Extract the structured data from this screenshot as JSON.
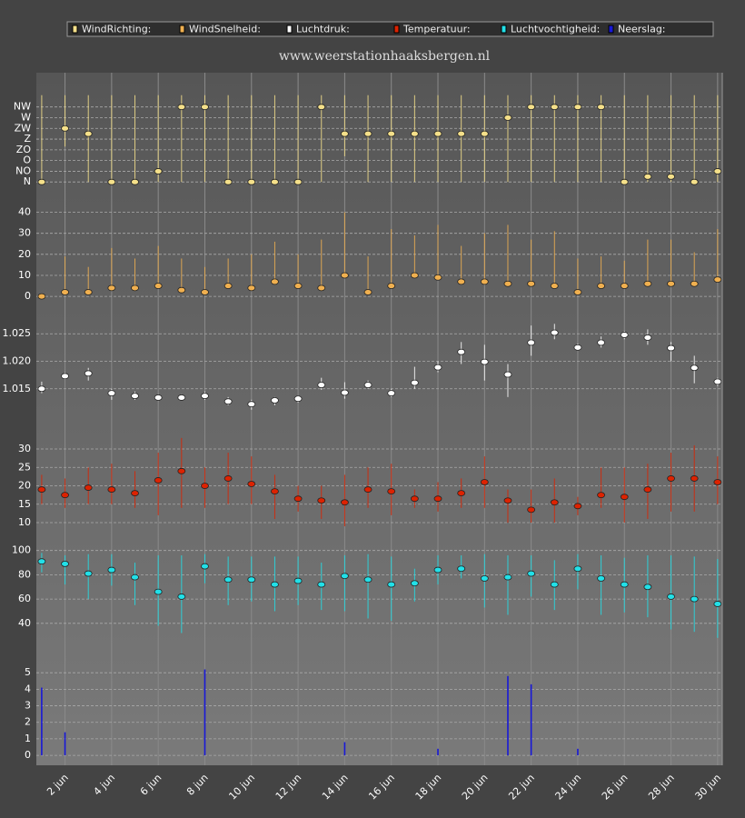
{
  "chart_data": [
    {
      "type": "scatter",
      "title": "www.weerstationhaaksbergen.nl",
      "name": "WindRichting:",
      "color": "#f5e08a",
      "x": [
        1,
        2,
        3,
        4,
        5,
        6,
        7,
        8,
        9,
        10,
        11,
        12,
        13,
        14,
        15,
        16,
        17,
        18,
        19,
        20,
        21,
        22,
        23,
        24,
        25,
        26,
        27,
        28,
        29,
        30
      ],
      "values": [
        0,
        5,
        4.5,
        0,
        0,
        1,
        7,
        7,
        0,
        0,
        0,
        0,
        7,
        4.5,
        4.5,
        4.5,
        4.5,
        4.5,
        4.5,
        4.5,
        6,
        7,
        7,
        7,
        7,
        0,
        0.5,
        0.5,
        0,
        1
      ],
      "low": [
        0,
        3.3,
        0,
        0,
        0,
        0,
        0,
        0,
        0,
        0,
        0,
        0,
        0,
        2.4,
        0,
        0,
        0,
        0,
        0,
        0,
        0,
        0,
        0,
        0,
        0,
        0,
        0,
        0,
        0,
        0
      ],
      "high": [
        8.1,
        8.1,
        8.1,
        8.1,
        8.1,
        8.1,
        8.1,
        8.1,
        8.1,
        8.1,
        8.1,
        8.1,
        8.1,
        8.1,
        8.1,
        8.1,
        8.1,
        8.1,
        8.1,
        8.1,
        8.1,
        8.1,
        8.1,
        8.1,
        8.1,
        8.1,
        8.1,
        8.1,
        8.1,
        8.1
      ],
      "ylim": [
        -1,
        8.5
      ],
      "yticks": [
        {
          "value": 0,
          "label": "N"
        },
        {
          "value": 1,
          "label": "NO"
        },
        {
          "value": 2,
          "label": "O"
        },
        {
          "value": 3,
          "label": "ZO"
        },
        {
          "value": 4,
          "label": "Z"
        },
        {
          "value": 5,
          "label": "ZW"
        },
        {
          "value": 6,
          "label": "W"
        },
        {
          "value": 7,
          "label": "NW"
        }
      ]
    },
    {
      "type": "scatter",
      "name": "WindSnelheid:",
      "color": "#f0b050",
      "x": [
        1,
        2,
        3,
        4,
        5,
        6,
        7,
        8,
        9,
        10,
        11,
        12,
        13,
        14,
        15,
        16,
        17,
        18,
        19,
        20,
        21,
        22,
        23,
        24,
        25,
        26,
        27,
        28,
        29,
        30
      ],
      "values": [
        0,
        2,
        2,
        4,
        4,
        5,
        3,
        2,
        5,
        4,
        7,
        5,
        4,
        10,
        2,
        5,
        10,
        9,
        7,
        7,
        6,
        6,
        5,
        2,
        5,
        5,
        6,
        6,
        6,
        8
      ],
      "high": [
        0,
        19,
        14,
        23,
        18,
        24,
        18,
        14,
        18,
        20,
        26,
        20,
        27,
        40,
        19,
        32,
        29,
        34,
        24,
        30,
        34,
        27,
        31,
        18,
        19,
        17,
        27,
        27,
        21,
        32
      ],
      "ylim": [
        -6,
        48
      ],
      "yticks": [
        0,
        10,
        20,
        30,
        40
      ]
    },
    {
      "type": "scatter",
      "name": "Luchtdruk:",
      "color": "#ffffff",
      "x": [
        1,
        2,
        3,
        4,
        5,
        6,
        7,
        8,
        9,
        10,
        11,
        12,
        13,
        14,
        15,
        16,
        17,
        18,
        19,
        20,
        21,
        22,
        23,
        24,
        25,
        26,
        27,
        28,
        29,
        30
      ],
      "values": [
        1.015,
        1.0173,
        1.0178,
        1.0142,
        1.0137,
        1.0134,
        1.0134,
        1.0137,
        1.0127,
        1.0122,
        1.0129,
        1.0132,
        1.0157,
        1.0143,
        1.0157,
        1.0142,
        1.0161,
        1.0189,
        1.0217,
        1.0199,
        1.0176,
        1.0234,
        1.0252,
        1.0225,
        1.0234,
        1.0248,
        1.0243,
        1.0224,
        1.0188,
        1.0163
      ],
      "low": [
        1.0142,
        1.0167,
        1.0165,
        1.013,
        1.013,
        1.0128,
        1.013,
        1.013,
        1.012,
        1.0112,
        1.012,
        1.0125,
        1.0148,
        1.0132,
        1.015,
        1.0135,
        1.015,
        1.018,
        1.0195,
        1.0165,
        1.0135,
        1.021,
        1.024,
        1.022,
        1.0225,
        1.024,
        1.023,
        1.02,
        1.016,
        1.0155
      ],
      "high": [
        1.0163,
        1.018,
        1.0188,
        1.015,
        1.0145,
        1.014,
        1.014,
        1.0145,
        1.0135,
        1.013,
        1.0135,
        1.0138,
        1.017,
        1.0162,
        1.0165,
        1.015,
        1.019,
        1.02,
        1.0235,
        1.023,
        1.0195,
        1.0265,
        1.0268,
        1.0232,
        1.0245,
        1.0255,
        1.0258,
        1.0235,
        1.021,
        1.017
      ],
      "ylim": [
        1.0105,
        1.029
      ],
      "yticks": [
        1.015,
        {
          "value": 1.02,
          "label": "1.020"
        },
        1.025
      ]
    },
    {
      "type": "scatter",
      "name": "Temperatuur:",
      "color": "#dd2200",
      "x": [
        1,
        2,
        3,
        4,
        5,
        6,
        7,
        8,
        9,
        10,
        11,
        12,
        13,
        14,
        15,
        16,
        17,
        18,
        19,
        20,
        21,
        22,
        23,
        24,
        25,
        26,
        27,
        28,
        29,
        30
      ],
      "values": [
        19,
        17.5,
        19.5,
        19,
        18,
        21.5,
        24,
        20,
        22,
        20.5,
        18.5,
        16.5,
        16,
        15.5,
        19,
        18.5,
        16.5,
        16.5,
        18,
        21,
        16,
        13.5,
        15.5,
        14.5,
        17.5,
        17,
        19,
        22,
        22,
        21
      ],
      "low": [
        15,
        14,
        15,
        15,
        14,
        12,
        14,
        14,
        15,
        15,
        11,
        13,
        11,
        9,
        14,
        12,
        14,
        13,
        14,
        14,
        10,
        10,
        10,
        12,
        14,
        10,
        11,
        13,
        13,
        15
      ],
      "high": [
        23,
        22,
        25,
        26,
        24,
        29,
        33,
        25,
        29,
        28,
        23,
        20,
        20,
        23,
        25,
        26,
        19,
        21,
        22,
        28,
        19,
        19,
        22,
        17,
        25,
        25,
        26,
        29,
        31,
        28
      ],
      "ylim": [
        6.3,
        38.4
      ],
      "yticks": [
        10,
        15,
        20,
        25,
        30
      ]
    },
    {
      "type": "scatter",
      "name": "Luchtvochtigheid:",
      "color": "#22e0e8",
      "x": [
        1,
        2,
        3,
        4,
        5,
        6,
        7,
        8,
        9,
        10,
        11,
        12,
        13,
        14,
        15,
        16,
        17,
        18,
        19,
        20,
        21,
        22,
        23,
        24,
        25,
        26,
        27,
        28,
        29,
        30
      ],
      "values": [
        91,
        89,
        81,
        84,
        78,
        66,
        62,
        87,
        76,
        76,
        72,
        75,
        72,
        79,
        76,
        72,
        73,
        84,
        85,
        77,
        78,
        81,
        72,
        85,
        77,
        72,
        70,
        62,
        60,
        56
      ],
      "low": [
        82,
        72,
        60,
        71,
        55,
        38,
        32,
        73,
        55,
        58,
        50,
        55,
        51,
        50,
        44,
        42,
        58,
        72,
        77,
        53,
        47,
        62,
        51,
        68,
        47,
        49,
        45,
        35,
        33,
        28
      ],
      "high": [
        98,
        96,
        97,
        97,
        90,
        96,
        96,
        97,
        95,
        95,
        95,
        95,
        90,
        96,
        97,
        95,
        85,
        96,
        96,
        97,
        96,
        96,
        92,
        97,
        96,
        94,
        96,
        96,
        95,
        93
      ],
      "ylim": [
        14.4,
        108
      ],
      "yticks": [
        40,
        60,
        80,
        100
      ]
    },
    {
      "type": "bar",
      "name": "Neerslag:",
      "color": "#1818d8",
      "x": [
        1,
        2,
        3,
        4,
        5,
        6,
        7,
        8,
        9,
        10,
        11,
        12,
        13,
        14,
        15,
        16,
        17,
        18,
        19,
        20,
        21,
        22,
        23,
        24,
        25,
        26,
        27,
        28,
        29,
        30
      ],
      "values": [
        4.1,
        1.4,
        0,
        0,
        0,
        0,
        0,
        5.2,
        0,
        0,
        0,
        0,
        0,
        0.8,
        0,
        0,
        0,
        0.4,
        0,
        0,
        4.8,
        4.3,
        0,
        0.4,
        0,
        0,
        0,
        0,
        0,
        0
      ],
      "ylim": [
        -0.6,
        6
      ],
      "yticks": [
        0,
        1,
        2,
        3,
        4,
        5
      ],
      "xlim": [
        0.77,
        30.2
      ],
      "xticks": [
        {
          "value": 2,
          "label": "2 jun"
        },
        {
          "value": 4,
          "label": "4 jun"
        },
        {
          "value": 6,
          "label": "6 jun"
        },
        {
          "value": 8,
          "label": "8 jun"
        },
        {
          "value": 10,
          "label": "10 jun"
        },
        {
          "value": 12,
          "label": "12 jun"
        },
        {
          "value": 14,
          "label": "14 jun"
        },
        {
          "value": 16,
          "label": "16 jun"
        },
        {
          "value": 18,
          "label": "18 jun"
        },
        {
          "value": 20,
          "label": "20 jun"
        },
        {
          "value": 22,
          "label": "22 jun"
        },
        {
          "value": 24,
          "label": "24 jun"
        },
        {
          "value": 26,
          "label": "26 jun"
        },
        {
          "value": 28,
          "label": "28 jun"
        },
        {
          "value": 30,
          "label": "30 jun"
        }
      ]
    }
  ]
}
